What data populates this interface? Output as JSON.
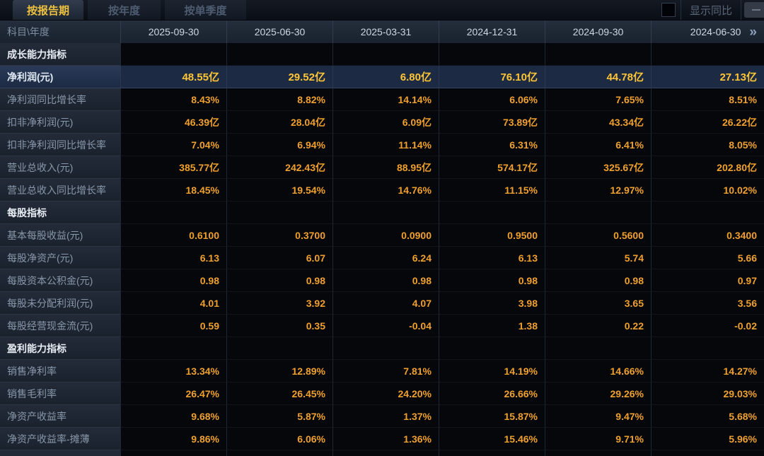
{
  "tabs": [
    {
      "label": "按报告期",
      "active": true
    },
    {
      "label": "按年度",
      "active": false
    },
    {
      "label": "按单季度",
      "active": false
    }
  ],
  "controls": {
    "show_yoy_label": "显示同比",
    "checkbox_checked": false
  },
  "icons": {
    "next_columns_glyph": "»"
  },
  "colors": {
    "accent_gold": "#eec23e",
    "value_orange": "#f0a02c",
    "highlight_value": "#ffc535",
    "highlight_row_bg": "#1c2a43"
  },
  "table": {
    "corner_label": "科目\\年度",
    "columns": [
      "2025-09-30",
      "2025-06-30",
      "2025-03-31",
      "2024-12-31",
      "2024-09-30",
      "2024-06-30"
    ],
    "rows": [
      {
        "type": "section",
        "label": "成长能力指标"
      },
      {
        "type": "data",
        "label": "净利润(元)",
        "highlight": true,
        "values": [
          "48.55亿",
          "29.52亿",
          "6.80亿",
          "76.10亿",
          "44.78亿",
          "27.13亿"
        ]
      },
      {
        "type": "data",
        "label": "净利润同比增长率",
        "values": [
          "8.43%",
          "8.82%",
          "14.14%",
          "6.06%",
          "7.65%",
          "8.51%"
        ]
      },
      {
        "type": "data",
        "label": "扣非净利润(元)",
        "values": [
          "46.39亿",
          "28.04亿",
          "6.09亿",
          "73.89亿",
          "43.34亿",
          "26.22亿"
        ]
      },
      {
        "type": "data",
        "label": "扣非净利润同比增长率",
        "values": [
          "7.04%",
          "6.94%",
          "11.14%",
          "6.31%",
          "6.41%",
          "8.05%"
        ]
      },
      {
        "type": "data",
        "label": "营业总收入(元)",
        "values": [
          "385.77亿",
          "242.43亿",
          "88.95亿",
          "574.17亿",
          "325.67亿",
          "202.80亿"
        ]
      },
      {
        "type": "data",
        "label": "营业总收入同比增长率",
        "values": [
          "18.45%",
          "19.54%",
          "14.76%",
          "11.15%",
          "12.97%",
          "10.02%"
        ]
      },
      {
        "type": "section",
        "label": "每股指标"
      },
      {
        "type": "data",
        "label": "基本每股收益(元)",
        "values": [
          "0.6100",
          "0.3700",
          "0.0900",
          "0.9500",
          "0.5600",
          "0.3400"
        ]
      },
      {
        "type": "data",
        "label": "每股净资产(元)",
        "values": [
          "6.13",
          "6.07",
          "6.24",
          "6.13",
          "5.74",
          "5.66"
        ]
      },
      {
        "type": "data",
        "label": "每股资本公积金(元)",
        "values": [
          "0.98",
          "0.98",
          "0.98",
          "0.98",
          "0.98",
          "0.97"
        ]
      },
      {
        "type": "data",
        "label": "每股未分配利润(元)",
        "values": [
          "4.01",
          "3.92",
          "4.07",
          "3.98",
          "3.65",
          "3.56"
        ]
      },
      {
        "type": "data",
        "label": "每股经营现金流(元)",
        "values": [
          "0.59",
          "0.35",
          "-0.04",
          "1.38",
          "0.22",
          "-0.02"
        ]
      },
      {
        "type": "section",
        "label": "盈利能力指标"
      },
      {
        "type": "data",
        "label": "销售净利率",
        "values": [
          "13.34%",
          "12.89%",
          "7.81%",
          "14.19%",
          "14.66%",
          "14.27%"
        ]
      },
      {
        "type": "data",
        "label": "销售毛利率",
        "values": [
          "26.47%",
          "26.45%",
          "24.20%",
          "26.66%",
          "29.26%",
          "29.03%"
        ]
      },
      {
        "type": "data",
        "label": "净资产收益率",
        "values": [
          "9.68%",
          "5.87%",
          "1.37%",
          "15.87%",
          "9.47%",
          "5.68%"
        ]
      },
      {
        "type": "data",
        "label": "净资产收益率-摊薄",
        "values": [
          "9.86%",
          "6.06%",
          "1.36%",
          "15.46%",
          "9.71%",
          "5.96%"
        ]
      }
    ]
  }
}
